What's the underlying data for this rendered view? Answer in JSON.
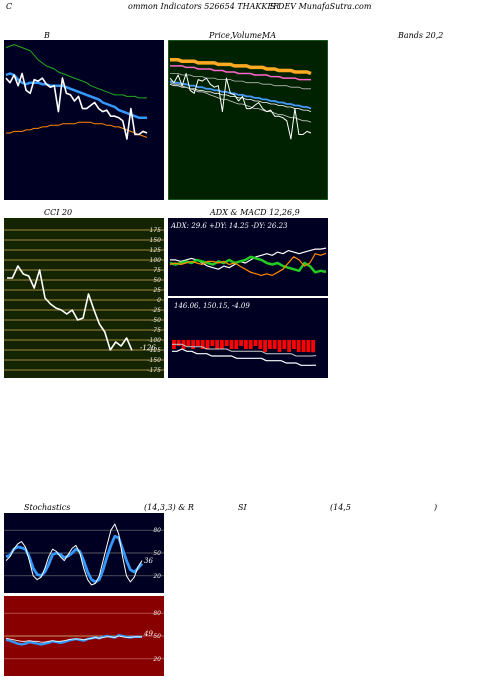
{
  "header": {
    "c": "C",
    "text": "ommon  Indicators 526654  THAKKER",
    "text2": "S DEV MunafaSutra.com"
  },
  "labels": {
    "b": "B",
    "price": "Price,",
    "volume": "Volume,",
    "ma": "MA",
    "bands": "Bands 20,2",
    "cci": "CCI 20",
    "adx_macd": "ADX  & MACD 12,26,9",
    "stoch": "Stochastics",
    "stoch_params": "(14,3,3) & R",
    "si": "SI",
    "rsi_params": "(14,5",
    "paren": ")"
  },
  "adx_text": "ADX: 29.6   +DY: 14.25 -DY: 26.23",
  "macd_text": "146.06,   150.15,   -4.09",
  "cci_value": "-126",
  "stoch_value": "36",
  "rsi_value": "49",
  "watermark": "MunafaSutra.com",
  "colors": {
    "navy_bg": "#000022",
    "green_bg": "#002200",
    "olive_bg": "#142400",
    "red_bg": "#880000",
    "orange": "#ff9900",
    "blue": "#3399ff",
    "green": "#22cc22"
  },
  "chart_data": [
    {
      "type": "line",
      "name": "bollinger_bands",
      "x": [
        0,
        1,
        2,
        3,
        4,
        5,
        6,
        7,
        8,
        9,
        10,
        11,
        12,
        13,
        14,
        15,
        16,
        17,
        18,
        19,
        20,
        21,
        22,
        23,
        24,
        25,
        26,
        27,
        28,
        29,
        30,
        31,
        32,
        33,
        34,
        35
      ],
      "series": [
        {
          "values": [
            120,
            121,
            122,
            121,
            120,
            119,
            118,
            115,
            112,
            110,
            108,
            107,
            106,
            104,
            103,
            102,
            101,
            100,
            99,
            98,
            97,
            95,
            94,
            93,
            92,
            91,
            90,
            89,
            89,
            89,
            88,
            88,
            88,
            87,
            87,
            87
          ]
        },
        {
          "values": [
            102,
            103,
            102,
            99,
            97,
            96,
            97,
            97,
            97,
            96,
            96,
            95,
            95,
            95,
            95,
            94,
            93,
            92,
            91,
            90,
            89,
            88,
            87,
            86,
            84,
            83,
            82,
            81,
            79,
            78,
            77,
            76,
            75,
            74,
            74,
            74
          ]
        },
        {
          "values": [
            64,
            64,
            65,
            65,
            65,
            66,
            66,
            67,
            67,
            68,
            68,
            69,
            69,
            69,
            70,
            70,
            70,
            70,
            71,
            71,
            71,
            71,
            70,
            70,
            70,
            69,
            69,
            68,
            68,
            67,
            66,
            65,
            64,
            63,
            62,
            61
          ]
        },
        {
          "values": [
            100,
            97,
            102,
            95,
            103,
            92,
            90,
            99,
            98,
            100,
            96,
            94,
            95,
            78,
            100,
            90,
            89,
            85,
            88,
            80,
            80,
            82,
            84,
            80,
            78,
            79,
            75,
            75,
            74,
            72,
            60,
            80,
            63,
            63,
            65,
            64
          ]
        }
      ]
    },
    {
      "type": "line",
      "name": "price_ma",
      "x": [
        0,
        1,
        2,
        3,
        4,
        5,
        6,
        7,
        8,
        9,
        10,
        11,
        12,
        13,
        14,
        15,
        16,
        17,
        18,
        19,
        20,
        21,
        22,
        23,
        24,
        25,
        26,
        27,
        28,
        29,
        30,
        31,
        32,
        33,
        34,
        35
      ],
      "series": [
        {
          "values": [
            112,
            112,
            112,
            111,
            111,
            111,
            111,
            110,
            110,
            110,
            110,
            110,
            109,
            109,
            109,
            109,
            108,
            108,
            108,
            108,
            107,
            107,
            107,
            107,
            106,
            106,
            106,
            105,
            105,
            105,
            105,
            104,
            104,
            104,
            104,
            103
          ]
        },
        {
          "values": [
            108,
            108,
            108,
            108,
            107,
            107,
            107,
            106,
            106,
            106,
            106,
            105,
            105,
            105,
            104,
            104,
            104,
            103,
            103,
            103,
            103,
            102,
            102,
            102,
            102,
            101,
            101,
            101,
            100,
            100,
            100,
            100,
            99,
            99,
            99,
            99
          ]
        },
        {
          "values": [
            103,
            103,
            103,
            102,
            102,
            102,
            101,
            101,
            101,
            100,
            100,
            100,
            99,
            99,
            99,
            99,
            98,
            98,
            98,
            97,
            97,
            97,
            97,
            96,
            96,
            96,
            95,
            95,
            95,
            95,
            94,
            94,
            94,
            93,
            93,
            93
          ]
        },
        {
          "values": [
            98,
            97,
            97,
            96,
            96,
            95,
            95,
            94,
            94,
            93,
            93,
            92,
            92,
            91,
            91,
            90,
            90,
            89,
            89,
            88,
            88,
            87,
            87,
            86,
            86,
            85,
            85,
            84,
            84,
            83,
            83,
            82,
            82,
            81,
            81,
            80
          ]
        },
        {
          "values": [
            96,
            95,
            95,
            94,
            94,
            93,
            93,
            92,
            92,
            91,
            91,
            90,
            90,
            89,
            89,
            88,
            88,
            87,
            87,
            86,
            86,
            85,
            85,
            84,
            84,
            83,
            83,
            82,
            82,
            81,
            81,
            80,
            80,
            79,
            79,
            78
          ]
        },
        {
          "values": [
            97,
            96,
            96,
            95,
            94,
            93,
            92,
            91,
            91,
            90,
            89,
            88,
            87,
            86,
            86,
            85,
            84,
            83,
            83,
            82,
            81,
            80,
            80,
            79,
            78,
            78,
            77,
            76,
            76,
            75,
            74,
            74,
            73,
            72,
            72,
            71
          ]
        },
        {
          "values": [
            100,
            97,
            102,
            95,
            103,
            92,
            90,
            99,
            98,
            100,
            96,
            94,
            95,
            78,
            100,
            90,
            89,
            85,
            88,
            80,
            80,
            82,
            84,
            80,
            78,
            79,
            75,
            75,
            74,
            72,
            60,
            80,
            63,
            63,
            65,
            64
          ]
        }
      ]
    },
    {
      "type": "line",
      "name": "cci",
      "x": [
        0,
        1,
        2,
        3,
        4,
        5,
        6,
        7,
        8,
        9,
        10,
        11,
        12,
        13,
        14,
        15,
        16,
        17,
        18,
        19,
        20,
        21,
        22,
        23
      ],
      "yticks": [
        175,
        150,
        125,
        100,
        75,
        50,
        25,
        0,
        -25,
        -50,
        -75,
        -100,
        -125,
        -150,
        -175
      ],
      "series": [
        {
          "values": [
            55,
            55,
            85,
            65,
            60,
            30,
            75,
            5,
            -10,
            -20,
            -25,
            -35,
            -25,
            -50,
            -45,
            15,
            -25,
            -60,
            -80,
            -125,
            -105,
            -115,
            -95,
            -126
          ]
        }
      ]
    },
    {
      "type": "line",
      "name": "adx",
      "x": [
        0,
        1,
        2,
        3,
        4,
        5,
        6,
        7,
        8,
        9,
        10,
        11,
        12,
        13,
        14,
        15,
        16,
        17,
        18,
        19,
        20,
        21,
        22,
        23,
        24,
        25,
        26,
        27,
        28,
        29
      ],
      "series": [
        {
          "values": [
            22,
            22,
            21,
            22,
            23,
            22,
            20,
            18,
            17,
            16,
            18,
            17,
            19,
            21,
            20,
            22,
            24,
            25,
            26,
            25,
            27,
            26,
            28,
            27,
            26,
            27,
            28,
            29,
            29,
            29.6
          ]
        },
        {
          "values": [
            20,
            19,
            20,
            21,
            20,
            22,
            21,
            20,
            19,
            21,
            20,
            22,
            20,
            21,
            22,
            24,
            23,
            22,
            20,
            19,
            20,
            18,
            17,
            16,
            15,
            20,
            18,
            14,
            15,
            14.25
          ]
        },
        {
          "values": [
            19,
            20,
            19,
            20,
            21,
            20,
            19,
            21,
            21,
            20,
            21,
            19,
            20,
            18,
            16,
            14,
            13,
            12,
            13,
            12,
            14,
            16,
            20,
            24,
            22,
            18,
            20,
            26,
            25,
            26.23
          ]
        }
      ]
    },
    {
      "type": "bar",
      "name": "macd",
      "x": [
        0,
        1,
        2,
        3,
        4,
        5,
        6,
        7,
        8,
        9,
        10,
        11,
        12,
        13,
        14,
        15,
        16,
        17,
        18,
        19,
        20,
        21,
        22,
        23,
        24,
        25,
        26,
        27,
        28,
        29
      ],
      "series": [
        {
          "values": [
            -3,
            -2,
            -3,
            -2,
            -3,
            -2,
            -3,
            -3,
            -2,
            -3,
            -3,
            -2,
            -3,
            -3,
            -2,
            -3,
            -3,
            -2,
            -3,
            -4,
            -3,
            -3,
            -4,
            -3,
            -4,
            -3,
            -4,
            -4,
            -4,
            -4.09
          ]
        },
        {
          "values": [
            152,
            152,
            153,
            152,
            152,
            151,
            151,
            151,
            150,
            150,
            150,
            150,
            150,
            149,
            149,
            149,
            149,
            149,
            149,
            148,
            148,
            148,
            148,
            147,
            147,
            147,
            146,
            146,
            146,
            146.06
          ]
        },
        {
          "values": [
            155,
            155,
            155,
            154,
            154,
            154,
            154,
            153,
            153,
            153,
            153,
            153,
            152,
            152,
            152,
            152,
            152,
            152,
            152,
            151,
            151,
            151,
            151,
            151,
            151,
            150,
            150,
            150,
            150,
            150.15
          ]
        }
      ]
    },
    {
      "type": "line",
      "name": "stochastics",
      "x": [
        0,
        1,
        2,
        3,
        4,
        5,
        6,
        7,
        8,
        9,
        10,
        11,
        12,
        13,
        14,
        15,
        16,
        17,
        18,
        19,
        20,
        21,
        22,
        23,
        24,
        25,
        26,
        27,
        28,
        29,
        30,
        31,
        32,
        33,
        34,
        35
      ],
      "yticks": [
        80,
        50,
        20
      ],
      "series": [
        {
          "values": [
            45,
            47,
            55,
            58,
            57,
            55,
            45,
            30,
            22,
            20,
            25,
            35,
            48,
            50,
            48,
            44,
            46,
            50,
            55,
            52,
            40,
            25,
            15,
            12,
            15,
            28,
            45,
            60,
            72,
            70,
            55,
            40,
            28,
            25,
            30,
            36
          ]
        },
        {
          "values": [
            40,
            45,
            55,
            62,
            65,
            58,
            40,
            20,
            15,
            18,
            30,
            45,
            55,
            52,
            45,
            40,
            48,
            56,
            60,
            50,
            30,
            15,
            8,
            10,
            20,
            40,
            60,
            80,
            88,
            75,
            45,
            20,
            12,
            18,
            32,
            40
          ]
        }
      ]
    },
    {
      "type": "line",
      "name": "rsi",
      "x": [
        0,
        1,
        2,
        3,
        4,
        5,
        6,
        7,
        8,
        9,
        10,
        11,
        12,
        13,
        14,
        15,
        16,
        17,
        18,
        19,
        20,
        21,
        22,
        23,
        24,
        25,
        26,
        27,
        28,
        29,
        30,
        31,
        32,
        33,
        34,
        35
      ],
      "yticks": [
        80,
        50,
        20
      ],
      "series": [
        {
          "values": [
            45,
            44,
            42,
            40,
            39,
            40,
            42,
            41,
            40,
            39,
            40,
            41,
            43,
            42,
            41,
            42,
            44,
            45,
            46,
            45,
            44,
            46,
            47,
            48,
            47,
            49,
            50,
            49,
            48,
            51,
            50,
            49,
            48,
            49,
            49,
            49
          ]
        },
        {
          "values": [
            47,
            46,
            45,
            44,
            43,
            43,
            44,
            43,
            43,
            42,
            42,
            43,
            44,
            43,
            43,
            44,
            45,
            46,
            46,
            46,
            45,
            46,
            47,
            48,
            47,
            48,
            49,
            49,
            48,
            50,
            49,
            48,
            48,
            49,
            49,
            49
          ]
        },
        {
          "values": [
            50,
            50,
            50,
            50,
            50,
            50,
            50,
            50,
            50,
            50,
            50,
            50,
            50,
            50,
            50,
            50,
            50,
            50,
            50,
            50,
            50,
            50,
            50,
            50,
            50,
            50,
            50,
            50,
            50,
            50,
            50,
            50,
            50,
            50,
            50,
            50
          ]
        }
      ]
    }
  ]
}
